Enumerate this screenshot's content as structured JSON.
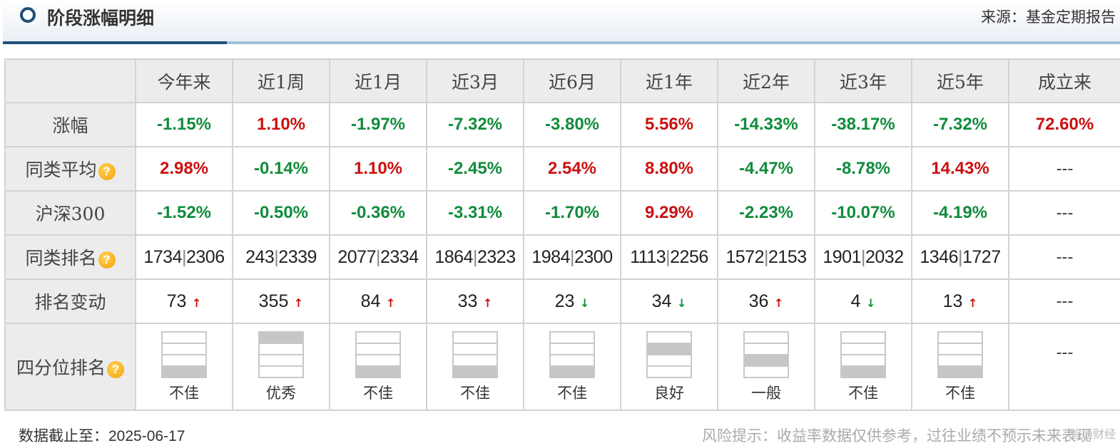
{
  "header": {
    "title": "阶段涨幅明细",
    "source": "来源：基金定期报告"
  },
  "columns": [
    "今年来",
    "近1周",
    "近1月",
    "近3月",
    "近6月",
    "近1年",
    "近2年",
    "近3年",
    "近5年",
    "成立来"
  ],
  "rows": {
    "gain": {
      "label": "涨幅",
      "values": [
        "-1.15%",
        "1.10%",
        "-1.97%",
        "-7.32%",
        "-3.80%",
        "5.56%",
        "-14.33%",
        "-38.17%",
        "-7.32%",
        "72.60%"
      ]
    },
    "peer_avg": {
      "label": "同类平均",
      "values": [
        "2.98%",
        "-0.14%",
        "1.10%",
        "-2.45%",
        "2.54%",
        "8.80%",
        "-4.47%",
        "-8.78%",
        "14.43%",
        "---"
      ]
    },
    "hs300": {
      "label": "沪深300",
      "values": [
        "-1.52%",
        "-0.50%",
        "-0.36%",
        "-3.31%",
        "-1.70%",
        "9.29%",
        "-2.23%",
        "-10.07%",
        "-4.19%",
        "---"
      ]
    },
    "peer_rank": {
      "label": "同类排名",
      "values": [
        {
          "rank": "1734",
          "total": "2306"
        },
        {
          "rank": "243",
          "total": "2339"
        },
        {
          "rank": "2077",
          "total": "2334"
        },
        {
          "rank": "1864",
          "total": "2323"
        },
        {
          "rank": "1984",
          "total": "2300"
        },
        {
          "rank": "1113",
          "total": "2256"
        },
        {
          "rank": "1572",
          "total": "2153"
        },
        {
          "rank": "1901",
          "total": "2032"
        },
        {
          "rank": "1346",
          "total": "1727"
        }
      ],
      "last": "---"
    },
    "rank_change": {
      "label": "排名变动",
      "values": [
        {
          "value": "73",
          "dir": "up"
        },
        {
          "value": "355",
          "dir": "up"
        },
        {
          "value": "84",
          "dir": "up"
        },
        {
          "value": "33",
          "dir": "up"
        },
        {
          "value": "23",
          "dir": "down"
        },
        {
          "value": "34",
          "dir": "down"
        },
        {
          "value": "36",
          "dir": "up"
        },
        {
          "value": "4",
          "dir": "down"
        },
        {
          "value": "13",
          "dir": "up"
        }
      ],
      "last": "---"
    },
    "quartile": {
      "label": "四分位排名",
      "values": [
        {
          "label": "不佳",
          "filled": 4
        },
        {
          "label": "优秀",
          "filled": 1
        },
        {
          "label": "不佳",
          "filled": 4
        },
        {
          "label": "不佳",
          "filled": 4
        },
        {
          "label": "不佳",
          "filled": 4
        },
        {
          "label": "良好",
          "filled": 2
        },
        {
          "label": "一般",
          "filled": 3
        },
        {
          "label": "不佳",
          "filled": 4
        },
        {
          "label": "不佳",
          "filled": 4
        }
      ],
      "last": "---"
    }
  },
  "footer": {
    "date_prefix": "数据截止至：",
    "date": "2025-06-17",
    "risk": "风险提示：收益率数据仅供参考，过往业绩不预示未来表现",
    "watermark": "智通财经"
  },
  "colors": {
    "positive": "#cc1010",
    "negative": "#108c3c",
    "header_accent": "#1d4f7a"
  }
}
